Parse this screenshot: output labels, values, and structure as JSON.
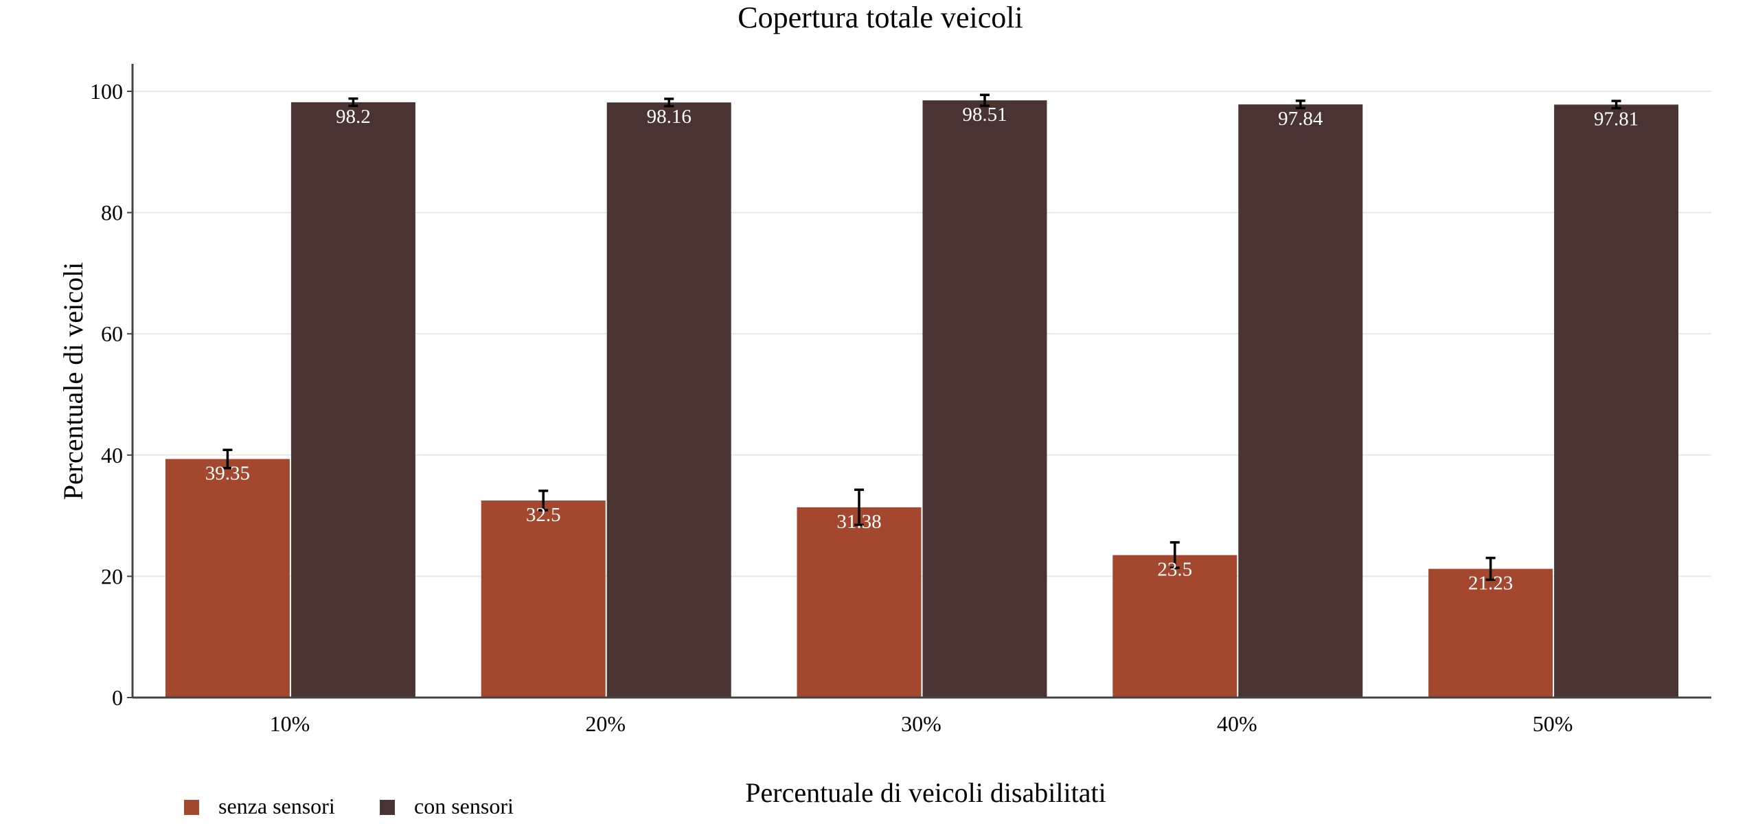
{
  "chart_data": {
    "type": "bar",
    "title": "Copertura totale veicoli",
    "xlabel": "Percentuale di veicoli disabilitati",
    "ylabel": "Percentuale di veicoli",
    "categories": [
      "10%",
      "20%",
      "30%",
      "40%",
      "50%"
    ],
    "ylim": [
      0,
      100
    ],
    "yticks": [
      0,
      20,
      40,
      60,
      80,
      100
    ],
    "grid": true,
    "legend_position": "bottom-left",
    "series": [
      {
        "name": "senza sensori",
        "color": "#a3472f",
        "values": [
          39.35,
          32.5,
          31.38,
          23.5,
          21.23
        ],
        "labels": [
          "39.35",
          "32.5",
          "31.38",
          "23.5",
          "21.23"
        ],
        "error": [
          1.5,
          1.6,
          2.9,
          2.1,
          1.8
        ]
      },
      {
        "name": "con sensori",
        "color": "#4a3432",
        "values": [
          98.2,
          98.16,
          98.51,
          97.84,
          97.81
        ],
        "labels": [
          "98.2",
          "98.16",
          "98.51",
          "97.84",
          "97.81"
        ],
        "error": [
          0.6,
          0.6,
          0.9,
          0.6,
          0.6
        ]
      }
    ]
  }
}
